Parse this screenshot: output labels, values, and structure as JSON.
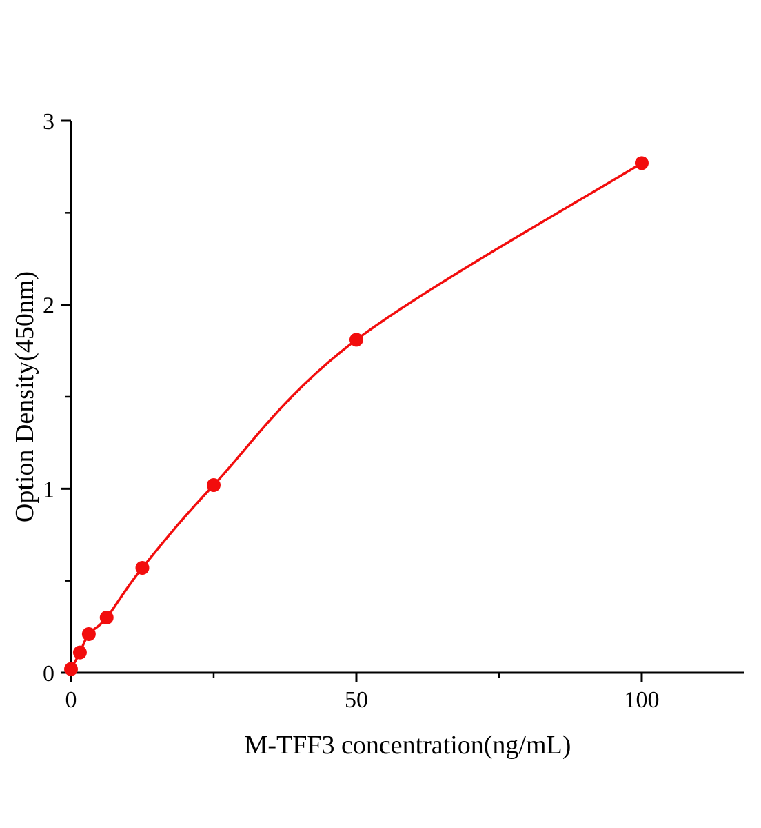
{
  "chart_data": {
    "type": "scatter",
    "title": "",
    "xlabel": "M-TFF3 concentration(ng/mL)",
    "ylabel": "Option Density(450nm)",
    "xlim": [
      0,
      118
    ],
    "ylim": [
      0,
      3
    ],
    "xticks": [
      0,
      50,
      100
    ],
    "xticks_minor": [
      25,
      75
    ],
    "yticks": [
      0,
      1,
      2,
      3
    ],
    "yticks_minor": [
      0.5,
      1.5,
      2.5
    ],
    "grid": false,
    "legend_position": "none",
    "axis_color": "#000000",
    "series": [
      {
        "name": "M-TFF3 standard curve",
        "color": "#f20d0d",
        "marker": "circle",
        "line": "smooth",
        "x": [
          0,
          1.5625,
          3.125,
          6.25,
          12.5,
          25,
          50,
          100
        ],
        "y": [
          0.02,
          0.11,
          0.21,
          0.3,
          0.57,
          1.02,
          1.81,
          2.77
        ]
      }
    ]
  }
}
